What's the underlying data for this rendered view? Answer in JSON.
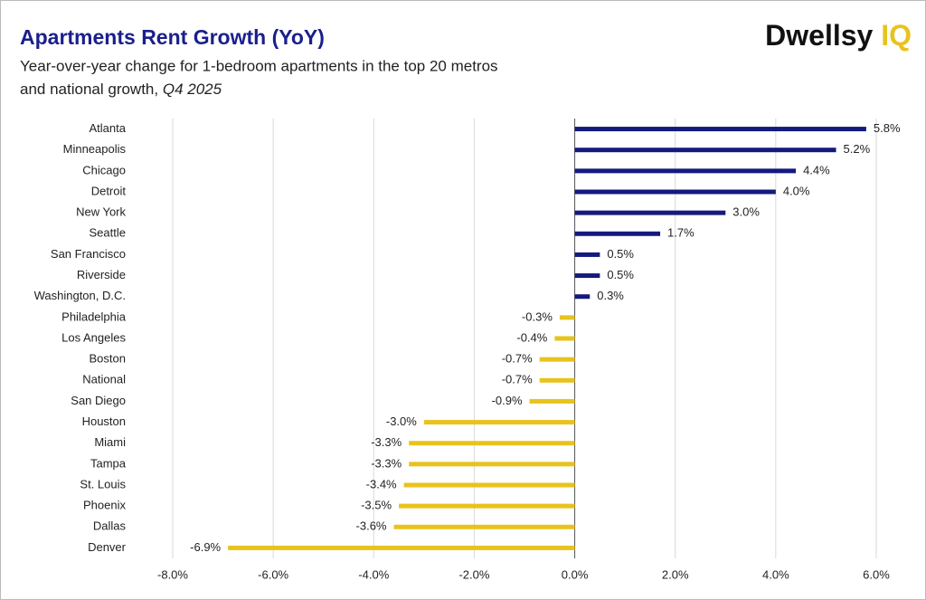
{
  "chart_data": {
    "type": "barh",
    "title": "Apartments Rent Growth (YoY)",
    "subtitle": [
      "Year-over-year change for 1-bedroom apartments in the top 20 metros",
      "and national growth,",
      "Q4 2025"
    ],
    "logo": [
      "Dwellsy",
      "IQ"
    ],
    "categories": [
      "Atlanta",
      "Minneapolis",
      "Chicago",
      "Detroit",
      "New York",
      "Seattle",
      "San Francisco",
      "Riverside",
      "Washington, D.C.",
      "Philadelphia",
      "Los Angeles",
      "Boston",
      "National",
      "San Diego",
      "Houston",
      "Miami",
      "Tampa",
      "St. Louis",
      "Phoenix",
      "Dallas",
      "Denver"
    ],
    "values": [
      5.8,
      5.2,
      4.4,
      4.0,
      3.0,
      1.7,
      0.5,
      0.5,
      0.3,
      -0.3,
      -0.4,
      -0.7,
      -0.7,
      -0.9,
      -3.0,
      -3.3,
      -3.3,
      -3.4,
      -3.5,
      -3.6,
      -6.9
    ],
    "value_labels": [
      "5.8%",
      "5.2%",
      "4.4%",
      "4.0%",
      "3.0%",
      "1.7%",
      "0.5%",
      "0.5%",
      "0.3%",
      "-0.3%",
      "-0.4%",
      "-0.7%",
      "-0.7%",
      "-0.9%",
      "-3.0%",
      "-3.3%",
      "-3.3%",
      "-3.4%",
      "-3.5%",
      "-3.6%",
      "-6.9%"
    ],
    "positive_color": "#141a7c",
    "negative_color": "#e8c31e",
    "xlim": [
      -8,
      6
    ],
    "xticks": [
      {
        "value": -8,
        "label": "-8.0%"
      },
      {
        "value": -6,
        "label": "-6.0%"
      },
      {
        "value": -4,
        "label": "-4.0%"
      },
      {
        "value": -2,
        "label": "-2.0%"
      },
      {
        "value": 0,
        "label": "0.0%"
      },
      {
        "value": 2,
        "label": "2.0%"
      },
      {
        "value": 4,
        "label": "4.0%"
      },
      {
        "value": 6,
        "label": "6.0%"
      }
    ],
    "grid": true
  }
}
